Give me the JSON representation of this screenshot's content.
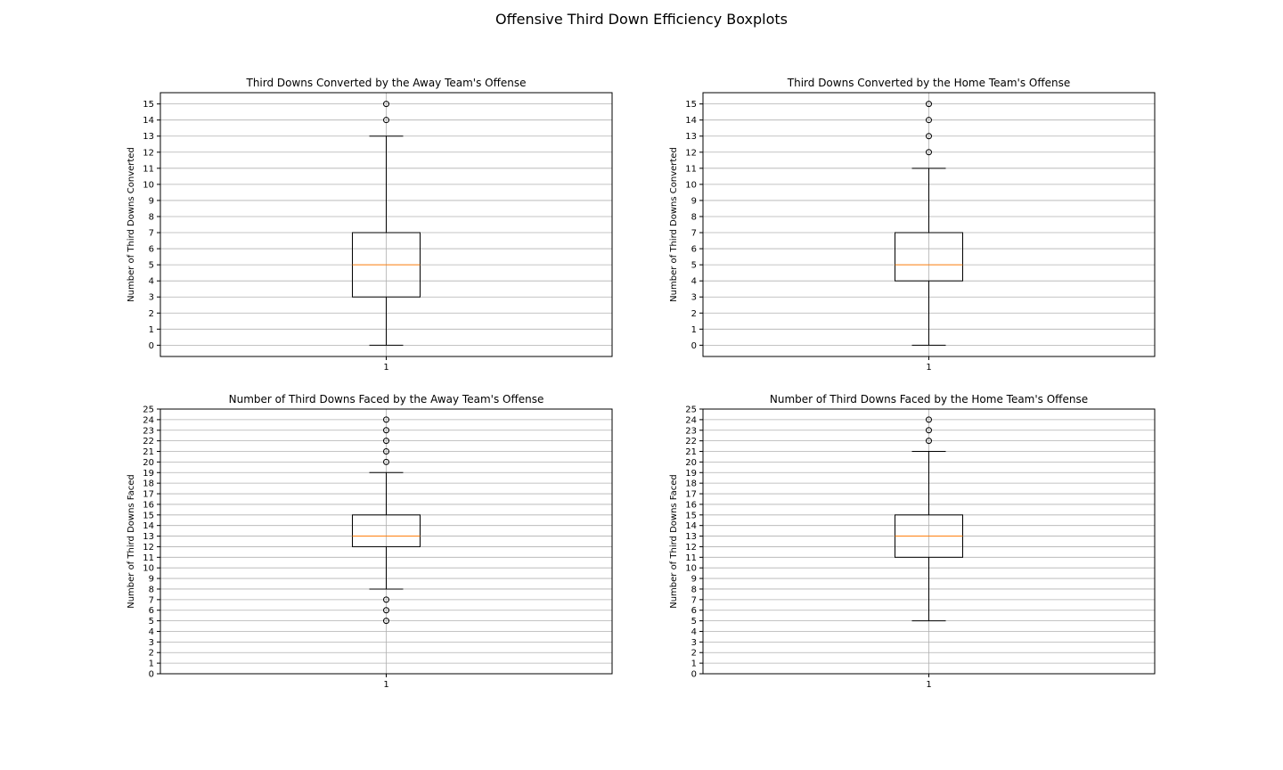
{
  "figure": {
    "title": "Offensive Third Down Efficiency Boxplots"
  },
  "colors": {
    "box": "#000000",
    "median": "#ff7f0e",
    "grid": "#b0b0b0"
  },
  "chart_data": [
    {
      "type": "boxplot",
      "title": "Third Downs Converted by the Away Team's Offense",
      "xlabel": "",
      "ylabel": "Number of Third Downs Converted",
      "categories": [
        "1"
      ],
      "ylim": [
        -0.7,
        15.7
      ],
      "yticks": [
        0,
        1,
        2,
        3,
        4,
        5,
        6,
        7,
        8,
        9,
        10,
        11,
        12,
        13,
        14,
        15
      ],
      "grid": true,
      "box": {
        "whisker_low": 0,
        "q1": 3,
        "median": 5,
        "q3": 7,
        "whisker_high": 13
      },
      "outliers": [
        14,
        15
      ]
    },
    {
      "type": "boxplot",
      "title": "Third Downs Converted by the Home Team's Offense",
      "xlabel": "",
      "ylabel": "Number of Third Downs Converted",
      "categories": [
        "1"
      ],
      "ylim": [
        -0.7,
        15.7
      ],
      "yticks": [
        0,
        1,
        2,
        3,
        4,
        5,
        6,
        7,
        8,
        9,
        10,
        11,
        12,
        13,
        14,
        15
      ],
      "grid": true,
      "box": {
        "whisker_low": 0,
        "q1": 4,
        "median": 5,
        "q3": 7,
        "whisker_high": 11
      },
      "outliers": [
        12,
        13,
        14,
        15
      ]
    },
    {
      "type": "boxplot",
      "title": "Number of Third Downs Faced by the Away Team's Offense",
      "xlabel": "",
      "ylabel": "Number of Third Downs Faced",
      "categories": [
        "1"
      ],
      "ylim": [
        0,
        25
      ],
      "yticks": [
        0,
        1,
        2,
        3,
        4,
        5,
        6,
        7,
        8,
        9,
        10,
        11,
        12,
        13,
        14,
        15,
        16,
        17,
        18,
        19,
        20,
        21,
        22,
        23,
        24,
        25
      ],
      "grid": true,
      "box": {
        "whisker_low": 8,
        "q1": 12,
        "median": 13,
        "q3": 15,
        "whisker_high": 19
      },
      "outliers": [
        5,
        6,
        7,
        20,
        21,
        22,
        23,
        24
      ]
    },
    {
      "type": "boxplot",
      "title": "Number of Third Downs Faced by the Home Team's Offense",
      "xlabel": "",
      "ylabel": "Number of Third Downs Faced",
      "categories": [
        "1"
      ],
      "ylim": [
        0,
        25
      ],
      "yticks": [
        0,
        1,
        2,
        3,
        4,
        5,
        6,
        7,
        8,
        9,
        10,
        11,
        12,
        13,
        14,
        15,
        16,
        17,
        18,
        19,
        20,
        21,
        22,
        23,
        24,
        25
      ],
      "grid": true,
      "box": {
        "whisker_low": 5,
        "q1": 11,
        "median": 13,
        "q3": 15,
        "whisker_high": 21
      },
      "outliers": [
        22,
        23,
        24
      ]
    }
  ]
}
